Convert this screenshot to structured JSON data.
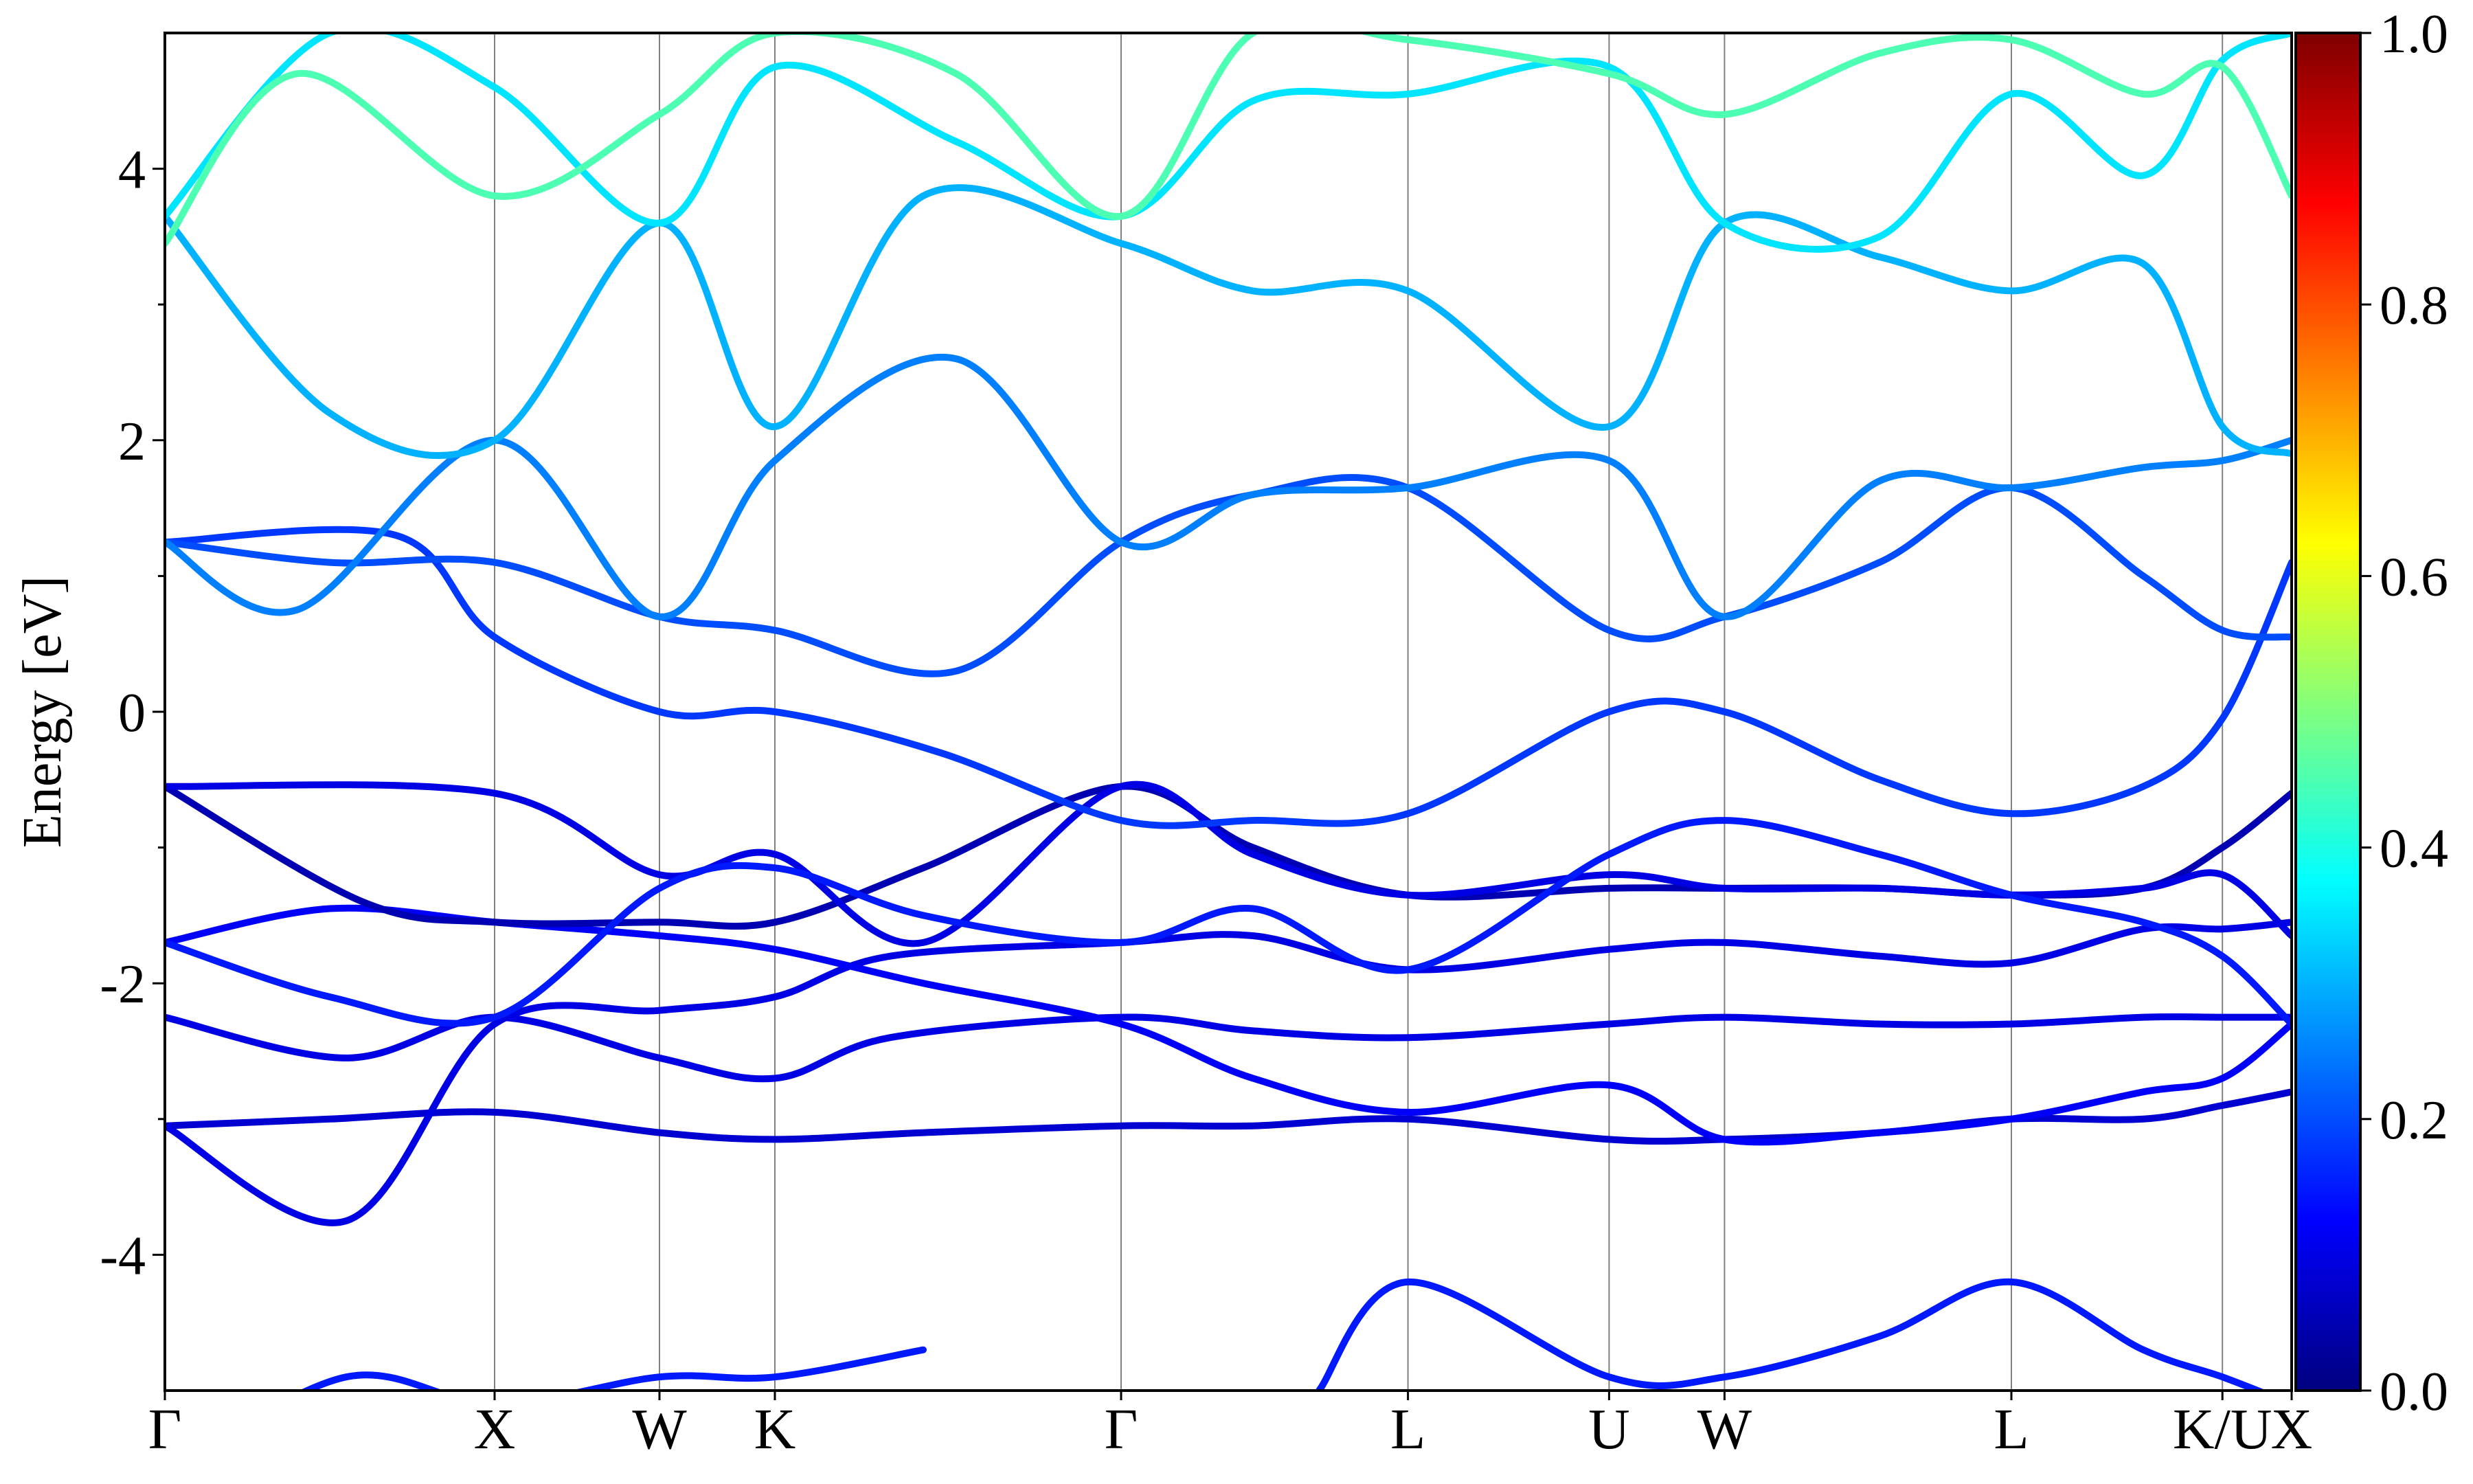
{
  "chart_data": {
    "type": "line",
    "title": "",
    "xlabel": "",
    "ylabel": "Energy [eV]",
    "ylim": [
      -5,
      5
    ],
    "yticks": [
      -4,
      -2,
      0,
      2,
      4
    ],
    "ytick_labels": [
      "-4",
      "-2",
      "0",
      "2",
      "4"
    ],
    "grid": false,
    "kpoint_labels": [
      "Γ",
      "X",
      "W",
      "K",
      "Γ",
      "L",
      "U",
      "W",
      "L",
      "K/U",
      "X"
    ],
    "kpoint_positions": [
      0,
      1.0,
      1.5,
      1.85,
      2.9,
      3.77,
      4.38,
      4.73,
      5.6,
      6.24,
      6.45
    ],
    "colorbar": {
      "colormap": "jet",
      "range": [
        0.0,
        1.0
      ],
      "ticks": [
        0.0,
        0.2,
        0.4,
        0.6,
        0.8,
        1.0
      ],
      "tick_labels": [
        "0.0",
        "0.2",
        "0.4",
        "0.6",
        "0.8",
        "1.0"
      ],
      "colors": [
        "#00007f",
        "#0000ff",
        "#007fff",
        "#00ffff",
        "#7fff7f",
        "#ffff00",
        "#ff7f00",
        "#ff0000",
        "#7f0000"
      ]
    },
    "series": [
      {
        "x": [
          0,
          0.5,
          1.0,
          1.5,
          1.85,
          2.3,
          2.9,
          3.3,
          3.77,
          4.38,
          4.73,
          5.2,
          5.6,
          6.0,
          6.24,
          6.45
        ],
        "values": [
          -3.05,
          -3.0,
          -2.95,
          -3.1,
          -3.15,
          -3.1,
          -3.05,
          -3.05,
          -3.0,
          -3.15,
          -3.15,
          -3.1,
          -3.0,
          -3.0,
          -2.9,
          -2.8
        ],
        "c": 0.08
      },
      {
        "x": [
          0,
          0.55,
          1.0,
          1.5,
          1.85,
          2.2,
          2.9,
          3.3,
          3.77,
          4.38,
          4.73,
          5.2,
          5.6,
          6.0,
          6.24,
          6.45
        ],
        "values": [
          -3.05,
          -3.75,
          -2.3,
          -2.2,
          -2.1,
          -1.8,
          -1.7,
          -1.65,
          -1.9,
          -1.75,
          -1.7,
          -1.8,
          -1.85,
          -1.6,
          -1.6,
          -1.55
        ],
        "c": 0.1
      },
      {
        "x": [
          0,
          0.55,
          1.0,
          1.5,
          1.85,
          2.2,
          2.9,
          3.3,
          3.77,
          4.38,
          4.73,
          5.2,
          5.6,
          6.0,
          6.24,
          6.45
        ],
        "values": [
          -2.25,
          -2.55,
          -2.25,
          -2.55,
          -2.7,
          -2.4,
          -2.25,
          -2.35,
          -2.4,
          -2.3,
          -2.25,
          -2.3,
          -2.3,
          -2.25,
          -2.25,
          -2.25
        ],
        "c": 0.1
      },
      {
        "x": [
          0,
          0.5,
          1.0,
          1.5,
          1.85,
          2.3,
          2.9,
          3.3,
          3.77,
          4.38,
          4.73,
          5.2,
          5.6,
          6.0,
          6.24,
          6.45
        ],
        "values": [
          -1.7,
          -1.45,
          -1.55,
          -1.65,
          -1.75,
          -2.0,
          -2.3,
          -2.7,
          -2.95,
          -2.75,
          -3.15,
          -3.1,
          -3.0,
          -2.8,
          -2.7,
          -2.3
        ],
        "c": 0.12
      },
      {
        "x": [
          0,
          0.6,
          1.0,
          1.5,
          1.85,
          2.3,
          2.9,
          3.3,
          3.77,
          4.38,
          4.73,
          5.2,
          5.6,
          6.0,
          6.24,
          6.45
        ],
        "values": [
          -0.55,
          -1.4,
          -1.55,
          -1.55,
          -1.55,
          -1.15,
          -0.55,
          -1.0,
          -1.35,
          -1.3,
          -1.3,
          -1.3,
          -1.35,
          -1.3,
          -1.0,
          -0.6
        ],
        "c": 0.05
      },
      {
        "x": [
          0,
          1.0,
          1.5,
          1.85,
          2.3,
          2.9,
          3.3,
          3.77,
          4.38,
          4.73,
          5.2,
          5.6,
          6.0,
          6.24,
          6.45
        ],
        "values": [
          -0.55,
          -0.6,
          -1.2,
          -1.05,
          -1.7,
          -0.55,
          -1.05,
          -1.35,
          -1.2,
          -1.3,
          -1.3,
          -1.35,
          -1.3,
          -1.2,
          -1.65
        ],
        "c": 0.1
      },
      {
        "x": [
          0,
          0.5,
          1.0,
          1.5,
          1.85,
          2.3,
          2.9,
          3.3,
          3.77,
          4.38,
          4.73,
          5.2,
          5.6,
          6.0,
          6.24,
          6.45
        ],
        "values": [
          -1.7,
          -2.1,
          -2.25,
          -1.3,
          -1.15,
          -1.5,
          -1.7,
          -1.45,
          -1.9,
          -1.05,
          -0.8,
          -1.05,
          -1.35,
          -1.55,
          -1.8,
          -2.3
        ],
        "c": 0.15
      },
      {
        "x": [
          0,
          0.7,
          1.0,
          1.5,
          1.85,
          2.35,
          2.9,
          3.3,
          3.77,
          4.38,
          4.73,
          5.2,
          5.6,
          6.0,
          6.24,
          6.45
        ],
        "values": [
          1.25,
          1.3,
          0.55,
          0.0,
          0.0,
          -0.3,
          -0.8,
          -0.8,
          -0.75,
          0.0,
          0.0,
          -0.5,
          -0.75,
          -0.55,
          -0.05,
          1.1
        ],
        "c": 0.18
      },
      {
        "x": [
          0,
          0.5,
          1.0,
          1.5,
          1.85,
          2.4,
          2.9,
          3.3,
          3.77,
          4.38,
          4.73,
          5.2,
          5.6,
          6.0,
          6.24,
          6.45
        ],
        "values": [
          1.25,
          1.1,
          1.1,
          0.7,
          0.6,
          0.3,
          1.25,
          1.6,
          1.65,
          0.6,
          0.7,
          1.1,
          1.65,
          1.0,
          0.6,
          0.55
        ],
        "c": 0.2
      },
      {
        "x": [
          0,
          0.4,
          1.0,
          1.5,
          1.85,
          2.4,
          2.9,
          3.3,
          3.77,
          4.38,
          4.73,
          5.2,
          5.6,
          6.0,
          6.24,
          6.45
        ],
        "values": [
          1.25,
          0.75,
          2.0,
          0.7,
          1.85,
          2.6,
          1.25,
          1.6,
          1.65,
          1.85,
          0.7,
          1.7,
          1.65,
          1.8,
          1.85,
          2.0
        ],
        "c": 0.25
      },
      {
        "x": [
          0,
          0.5,
          1.0,
          1.5,
          1.85,
          2.3,
          2.9,
          3.3,
          3.77,
          4.38,
          4.73,
          5.2,
          5.6,
          6.0,
          6.24,
          6.45
        ],
        "values": [
          3.65,
          2.2,
          2.0,
          3.6,
          2.1,
          3.8,
          3.45,
          3.1,
          3.1,
          2.1,
          3.6,
          3.35,
          3.1,
          3.3,
          2.1,
          1.9
        ],
        "c": 0.3
      },
      {
        "x": [
          0,
          0.5,
          1.0,
          1.5,
          1.85,
          2.4,
          2.9,
          3.3,
          3.77,
          4.38,
          4.73,
          5.2,
          5.6,
          6.0,
          6.24,
          6.45
        ],
        "values": [
          3.65,
          5.0,
          4.6,
          3.6,
          4.75,
          4.2,
          3.65,
          4.5,
          4.55,
          4.75,
          3.6,
          3.5,
          4.55,
          3.95,
          4.8,
          5.0
        ],
        "c": 0.35
      },
      {
        "x": [
          0,
          0.4,
          1.0,
          1.5,
          1.85,
          2.4,
          2.9,
          3.3,
          3.77,
          4.38,
          4.73,
          5.2,
          5.6,
          6.0,
          6.24,
          6.45
        ],
        "values": [
          3.45,
          4.7,
          3.8,
          4.4,
          5.0,
          4.7,
          3.65,
          5.0,
          4.95,
          4.7,
          4.4,
          4.85,
          4.95,
          4.55,
          4.75,
          3.8
        ],
        "c": 0.45
      },
      {
        "x": [
          0,
          0.55,
          1.0,
          1.5,
          1.85,
          2.3
        ],
        "values": [
          -5.6,
          -4.9,
          -5.1,
          -4.9,
          -4.9,
          -4.7
        ],
        "c": 0.15
      },
      {
        "x": [
          3.5,
          3.77,
          4.38,
          4.73,
          5.2,
          5.6,
          6.0,
          6.24,
          6.45
        ],
        "values": [
          -5.0,
          -4.2,
          -4.9,
          -4.9,
          -4.6,
          -4.2,
          -4.7,
          -4.9,
          -5.1
        ],
        "c": 0.15
      }
    ]
  }
}
